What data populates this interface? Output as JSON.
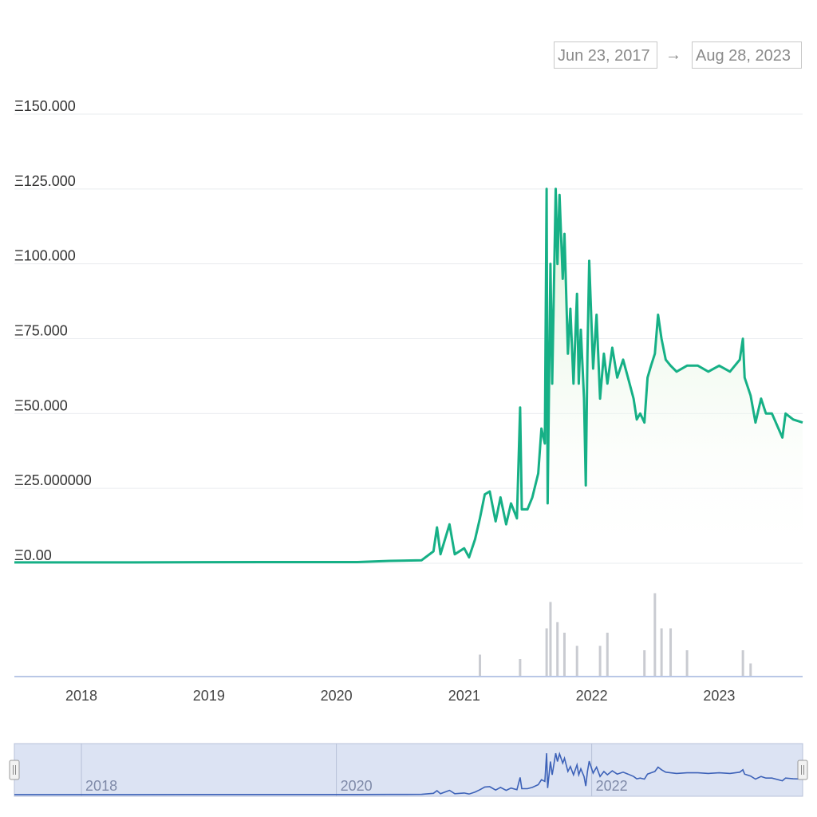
{
  "range": {
    "from": "Jun 23, 2017",
    "arrow": "→",
    "to": "Aug 28, 2023"
  },
  "colors": {
    "line": "#16b086",
    "area_top": "#d9f0d4",
    "volume": "#c9cbd1",
    "grid": "#e9ecef",
    "navigator_bg": "#dce3f3",
    "navigator_border": "#b7c0d8",
    "navigator_line": "#3d62b8"
  },
  "chart_data": {
    "type": "line",
    "ylim": [
      0,
      150
    ],
    "y_tick_values": [
      0,
      25,
      50,
      75,
      100,
      125,
      150
    ],
    "y_tick_labels": [
      "Ξ0.00",
      "Ξ25.000000",
      "Ξ50.000",
      "Ξ75.000",
      "Ξ100.000",
      "Ξ125.000",
      "Ξ150.000"
    ],
    "x_tick_labels": [
      "2018",
      "2019",
      "2020",
      "2021",
      "2022",
      "2023"
    ],
    "x_range": [
      "2017-06-23",
      "2023-08-28"
    ],
    "price_series": [
      [
        "2017-06-23",
        0.3
      ],
      [
        "2018-06-01",
        0.3
      ],
      [
        "2019-06-01",
        0.4
      ],
      [
        "2020-03-01",
        0.4
      ],
      [
        "2020-06-01",
        0.8
      ],
      [
        "2020-09-01",
        1.0
      ],
      [
        "2020-10-05",
        4
      ],
      [
        "2020-10-15",
        12
      ],
      [
        "2020-10-25",
        3
      ],
      [
        "2020-11-20",
        13
      ],
      [
        "2020-12-05",
        3
      ],
      [
        "2021-01-01",
        5
      ],
      [
        "2021-01-15",
        2
      ],
      [
        "2021-02-01",
        8
      ],
      [
        "2021-02-15",
        15
      ],
      [
        "2021-03-01",
        23
      ],
      [
        "2021-03-15",
        24
      ],
      [
        "2021-04-01",
        14
      ],
      [
        "2021-04-15",
        22
      ],
      [
        "2021-05-01",
        13
      ],
      [
        "2021-05-15",
        20
      ],
      [
        "2021-06-01",
        15
      ],
      [
        "2021-06-10",
        52
      ],
      [
        "2021-06-15",
        18
      ],
      [
        "2021-07-01",
        18
      ],
      [
        "2021-07-15",
        22
      ],
      [
        "2021-08-01",
        30
      ],
      [
        "2021-08-10",
        45
      ],
      [
        "2021-08-20",
        40
      ],
      [
        "2021-08-25",
        125
      ],
      [
        "2021-08-28",
        20
      ],
      [
        "2021-09-05",
        100
      ],
      [
        "2021-09-10",
        60
      ],
      [
        "2021-09-20",
        125
      ],
      [
        "2021-09-25",
        100
      ],
      [
        "2021-10-01",
        123
      ],
      [
        "2021-10-10",
        95
      ],
      [
        "2021-10-15",
        110
      ],
      [
        "2021-10-25",
        70
      ],
      [
        "2021-11-01",
        85
      ],
      [
        "2021-11-10",
        60
      ],
      [
        "2021-11-20",
        90
      ],
      [
        "2021-11-25",
        60
      ],
      [
        "2021-12-01",
        78
      ],
      [
        "2021-12-10",
        55
      ],
      [
        "2021-12-15",
        26
      ],
      [
        "2021-12-20",
        70
      ],
      [
        "2021-12-25",
        101
      ],
      [
        "2022-01-05",
        65
      ],
      [
        "2022-01-15",
        83
      ],
      [
        "2022-01-25",
        55
      ],
      [
        "2022-02-05",
        70
      ],
      [
        "2022-02-15",
        60
      ],
      [
        "2022-03-01",
        72
      ],
      [
        "2022-03-15",
        62
      ],
      [
        "2022-04-01",
        68
      ],
      [
        "2022-04-15",
        62
      ],
      [
        "2022-05-01",
        55
      ],
      [
        "2022-05-10",
        48
      ],
      [
        "2022-05-20",
        50
      ],
      [
        "2022-06-01",
        47
      ],
      [
        "2022-06-10",
        62
      ],
      [
        "2022-06-20",
        66
      ],
      [
        "2022-07-01",
        70
      ],
      [
        "2022-07-10",
        83
      ],
      [
        "2022-07-20",
        75
      ],
      [
        "2022-08-01",
        68
      ],
      [
        "2022-08-15",
        66
      ],
      [
        "2022-09-01",
        64
      ],
      [
        "2022-10-01",
        66
      ],
      [
        "2022-11-01",
        66
      ],
      [
        "2022-12-01",
        64
      ],
      [
        "2023-01-01",
        66
      ],
      [
        "2023-02-01",
        64
      ],
      [
        "2023-03-01",
        68
      ],
      [
        "2023-03-10",
        75
      ],
      [
        "2023-03-15",
        62
      ],
      [
        "2023-04-01",
        56
      ],
      [
        "2023-04-15",
        47
      ],
      [
        "2023-05-01",
        55
      ],
      [
        "2023-05-15",
        50
      ],
      [
        "2023-06-01",
        50
      ],
      [
        "2023-07-01",
        42
      ],
      [
        "2023-07-10",
        50
      ],
      [
        "2023-08-01",
        48
      ],
      [
        "2023-08-28",
        47
      ]
    ],
    "volume_series": [
      [
        "2021-02-15",
        0.25
      ],
      [
        "2021-06-10",
        0.2
      ],
      [
        "2021-08-25",
        0.55
      ],
      [
        "2021-09-05",
        0.85
      ],
      [
        "2021-09-25",
        0.62
      ],
      [
        "2021-10-15",
        0.5
      ],
      [
        "2021-11-20",
        0.35
      ],
      [
        "2022-01-25",
        0.35
      ],
      [
        "2022-02-15",
        0.5
      ],
      [
        "2022-06-01",
        0.3
      ],
      [
        "2022-07-01",
        0.95
      ],
      [
        "2022-07-20",
        0.55
      ],
      [
        "2022-08-15",
        0.55
      ],
      [
        "2022-10-01",
        0.3
      ],
      [
        "2023-03-10",
        0.3
      ],
      [
        "2023-04-01",
        0.15
      ]
    ]
  },
  "navigator": {
    "tick_labels": [
      "2018",
      "2020",
      "2022"
    ]
  }
}
